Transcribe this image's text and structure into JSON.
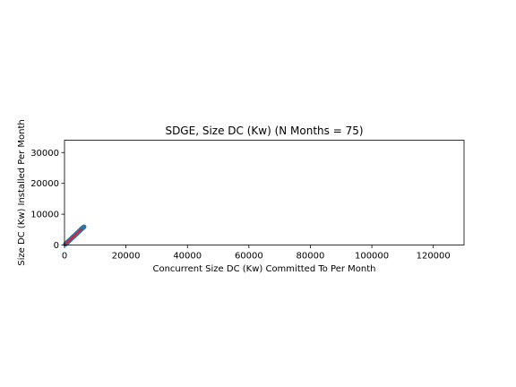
{
  "chart_data": {
    "type": "scatter",
    "title": "SDGE, Size DC (Kw) (N Months = 75)",
    "xlabel": "Concurrent Size DC (Kw) Committed To Per Month",
    "ylabel": "Size DC (Kw) Installed Per Month",
    "xlim": [
      0,
      130000
    ],
    "ylim": [
      0,
      34000
    ],
    "xticks": [
      0,
      20000,
      40000,
      60000,
      80000,
      100000,
      120000
    ],
    "yticks": [
      0,
      10000,
      20000,
      30000
    ],
    "grid": false,
    "colors": {
      "scatter": "#1f77b4",
      "fit_line": "#d62728"
    },
    "series": [
      {
        "values_xy": [
          [
            300,
            250
          ],
          [
            420,
            380
          ],
          [
            550,
            520
          ],
          [
            650,
            610
          ],
          [
            780,
            720
          ],
          [
            850,
            800
          ],
          [
            950,
            880
          ],
          [
            1050,
            980
          ],
          [
            1150,
            1060
          ],
          [
            1250,
            1180
          ],
          [
            1350,
            1260
          ],
          [
            1450,
            1350
          ],
          [
            1550,
            1450
          ],
          [
            1650,
            1520
          ],
          [
            1750,
            1640
          ],
          [
            1850,
            1720
          ],
          [
            1950,
            1830
          ],
          [
            2050,
            1900
          ],
          [
            2150,
            2020
          ],
          [
            2250,
            2100
          ],
          [
            2350,
            2200
          ],
          [
            2450,
            2280
          ],
          [
            2550,
            2400
          ],
          [
            2650,
            2470
          ],
          [
            2750,
            2580
          ],
          [
            2850,
            2660
          ],
          [
            2950,
            2760
          ],
          [
            3050,
            2840
          ],
          [
            3150,
            2950
          ],
          [
            3250,
            3020
          ],
          [
            3350,
            3140
          ],
          [
            3450,
            3210
          ],
          [
            3550,
            3330
          ],
          [
            3650,
            3400
          ],
          [
            3750,
            3520
          ],
          [
            3850,
            3590
          ],
          [
            3950,
            3700
          ],
          [
            4050,
            3780
          ],
          [
            4150,
            3880
          ],
          [
            4250,
            3960
          ],
          [
            4350,
            4070
          ],
          [
            4450,
            4150
          ],
          [
            4550,
            4260
          ],
          [
            4650,
            4340
          ],
          [
            4750,
            4450
          ],
          [
            4850,
            4520
          ],
          [
            4950,
            4640
          ],
          [
            5050,
            4710
          ],
          [
            5150,
            4830
          ],
          [
            5250,
            4900
          ],
          [
            5350,
            5010
          ],
          [
            5450,
            5090
          ],
          [
            5550,
            5200
          ],
          [
            5650,
            5270
          ],
          [
            5750,
            5380
          ],
          [
            5850,
            5460
          ],
          [
            5950,
            5560
          ],
          [
            6050,
            5640
          ],
          [
            6150,
            5720
          ],
          [
            6250,
            5800
          ],
          [
            6350,
            5880
          ],
          [
            700,
            600
          ],
          [
            1100,
            1000
          ],
          [
            1600,
            1480
          ],
          [
            2100,
            1960
          ],
          [
            2600,
            2430
          ],
          [
            3100,
            2900
          ],
          [
            3600,
            3360
          ],
          [
            4100,
            3840
          ],
          [
            4600,
            4300
          ],
          [
            5100,
            4760
          ],
          [
            5600,
            5240
          ],
          [
            6100,
            5700
          ],
          [
            6200,
            5780
          ],
          [
            6300,
            5850
          ]
        ]
      }
    ],
    "fit_line": {
      "x": [
        0,
        5800
      ],
      "y": [
        0,
        5400
      ]
    }
  }
}
